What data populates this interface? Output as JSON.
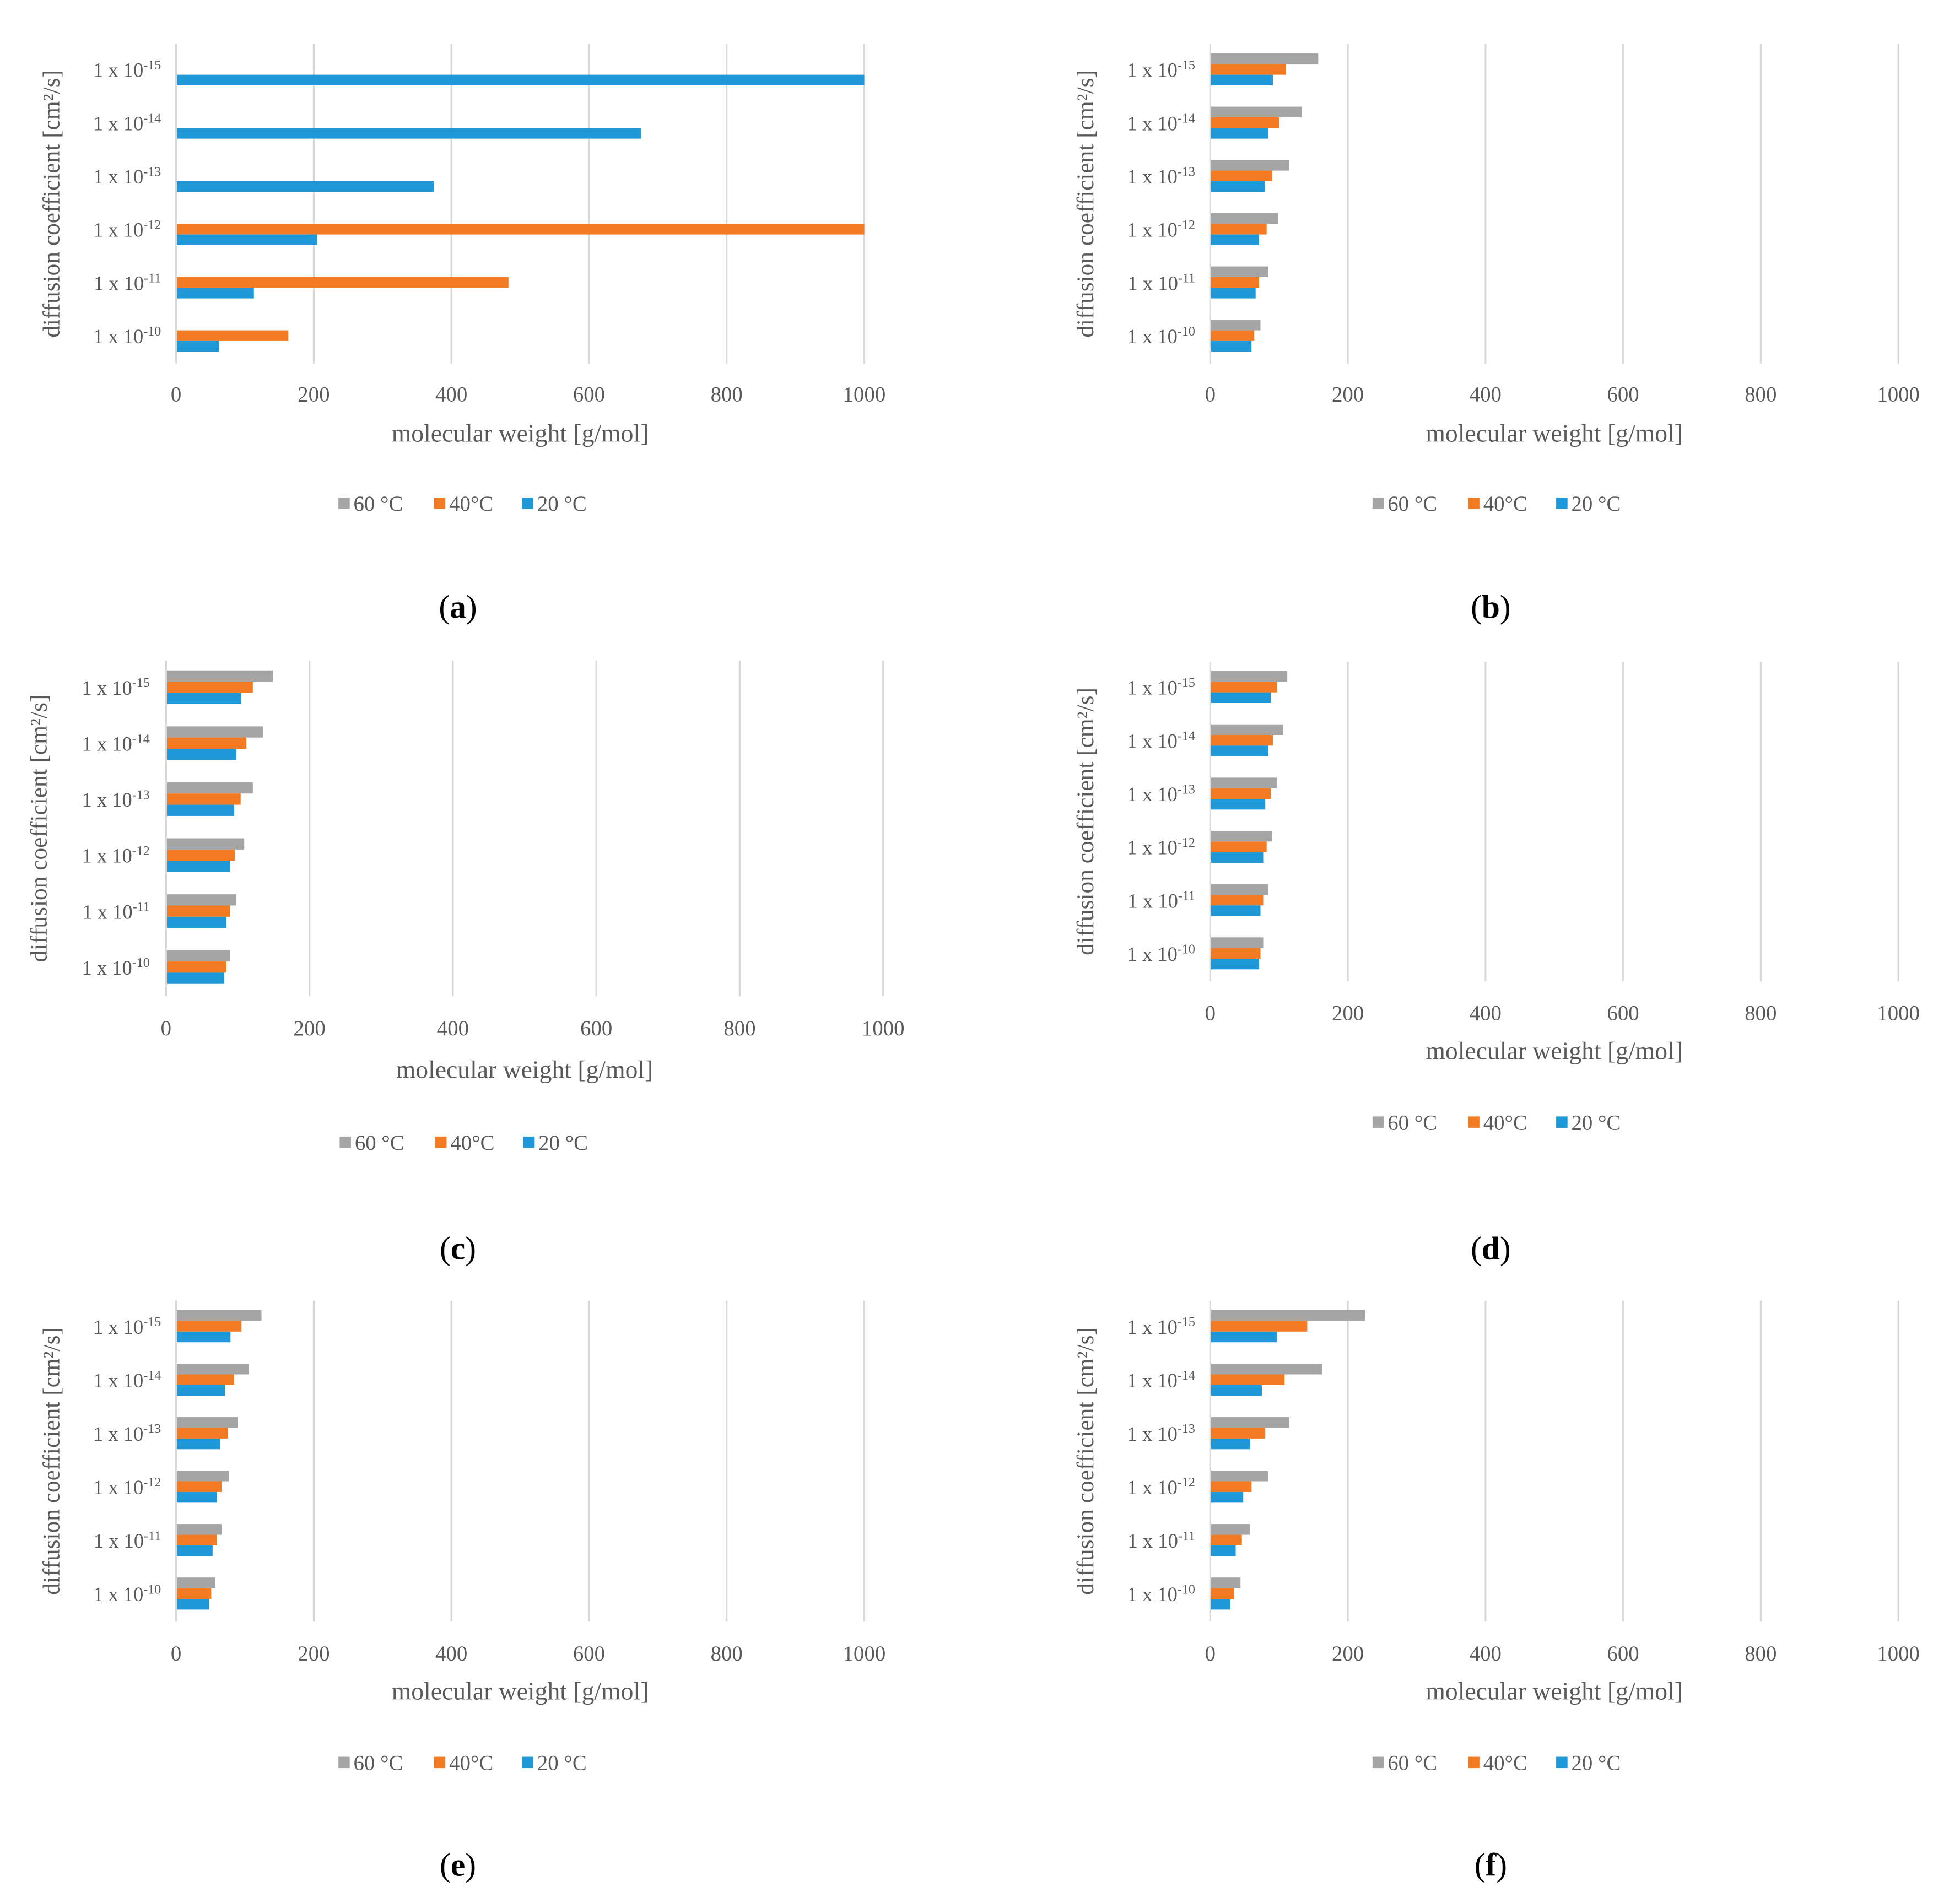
{
  "chart_data": [
    {
      "panel_label_parts": [
        "(",
        "a",
        ")"
      ],
      "type": "bar",
      "orientation": "horizontal",
      "xlabel": "molecular weight [g/mol]",
      "ylabel": "diffusion coefficient [cm²/s]",
      "xlim": [
        0,
        1000
      ],
      "xticks": [
        0,
        200,
        400,
        600,
        800,
        1000
      ],
      "grid": true,
      "legend": "bottom",
      "categories": [
        {
          "base": "1 x 10",
          "exp": "-10"
        },
        {
          "base": "1 x 10",
          "exp": "-11"
        },
        {
          "base": "1 x 10",
          "exp": "-12"
        },
        {
          "base": "1 x 10",
          "exp": "-13"
        },
        {
          "base": "1 x 10",
          "exp": "-14"
        },
        {
          "base": "1 x 10",
          "exp": "-15"
        }
      ],
      "series": [
        {
          "name": "60 °C",
          "color": "#A5A5A5",
          "values": [
            null,
            null,
            null,
            null,
            null,
            null
          ]
        },
        {
          "name": "40°C",
          "color": "#F27A22",
          "values": [
            163,
            483,
            1000,
            null,
            null,
            null
          ]
        },
        {
          "name": "20 °C",
          "color": "#1E98D6",
          "values": [
            62,
            113,
            205,
            375,
            676,
            1000
          ]
        }
      ]
    },
    {
      "panel_label_parts": [
        "(",
        "b",
        ")"
      ],
      "type": "bar",
      "orientation": "horizontal",
      "xlabel": "molecular weight [g/mol]",
      "ylabel": "diffusion coefficient [cm²/s]",
      "xlim": [
        0,
        1000
      ],
      "xticks": [
        0,
        200,
        400,
        600,
        800,
        1000
      ],
      "grid": true,
      "legend": "bottom",
      "categories": [
        {
          "base": "1 x 10",
          "exp": "-10"
        },
        {
          "base": "1 x 10",
          "exp": "-11"
        },
        {
          "base": "1 x 10",
          "exp": "-12"
        },
        {
          "base": "1 x 10",
          "exp": "-13"
        },
        {
          "base": "1 x 10",
          "exp": "-14"
        },
        {
          "base": "1 x 10",
          "exp": "-15"
        }
      ],
      "series": [
        {
          "name": "60 °C",
          "color": "#A5A5A5",
          "values": [
            73,
            84,
            99,
            115,
            133,
            157
          ]
        },
        {
          "name": "40°C",
          "color": "#F27A22",
          "values": [
            64,
            71,
            82,
            90,
            100,
            110
          ]
        },
        {
          "name": "20 °C",
          "color": "#1E98D6",
          "values": [
            60,
            66,
            71,
            79,
            84,
            91
          ]
        }
      ]
    },
    {
      "panel_label_parts": [
        "(",
        "c",
        ")"
      ],
      "type": "bar",
      "orientation": "horizontal",
      "xlabel": "molecular weight [g/mol]",
      "ylabel": "diffusion coefficient [cm²/s]",
      "xlim": [
        0,
        1000
      ],
      "xticks": [
        0,
        200,
        400,
        600,
        800,
        1000
      ],
      "grid": true,
      "legend": "bottom",
      "categories": [
        {
          "base": "1 x 10",
          "exp": "-10"
        },
        {
          "base": "1 x 10",
          "exp": "-11"
        },
        {
          "base": "1 x 10",
          "exp": "-12"
        },
        {
          "base": "1 x 10",
          "exp": "-13"
        },
        {
          "base": "1 x 10",
          "exp": "-14"
        },
        {
          "base": "1 x 10",
          "exp": "-15"
        }
      ],
      "series": [
        {
          "name": "60 °C",
          "color": "#A5A5A5",
          "values": [
            89,
            98,
            109,
            121,
            135,
            149
          ]
        },
        {
          "name": "40°C",
          "color": "#F27A22",
          "values": [
            84,
            89,
            96,
            104,
            112,
            121
          ]
        },
        {
          "name": "20 °C",
          "color": "#1E98D6",
          "values": [
            81,
            84,
            89,
            95,
            98,
            105
          ]
        }
      ]
    },
    {
      "panel_label_parts": [
        "(",
        "d",
        ")"
      ],
      "type": "bar",
      "orientation": "horizontal",
      "xlabel": "molecular weight [g/mol]",
      "ylabel": "diffusion coefficient [cm²/s]",
      "xlim": [
        0,
        1000
      ],
      "xticks": [
        0,
        200,
        400,
        600,
        800,
        1000
      ],
      "grid": true,
      "legend": "bottom",
      "categories": [
        {
          "base": "1 x 10",
          "exp": "-10"
        },
        {
          "base": "1 x 10",
          "exp": "-11"
        },
        {
          "base": "1 x 10",
          "exp": "-12"
        },
        {
          "base": "1 x 10",
          "exp": "-13"
        },
        {
          "base": "1 x 10",
          "exp": "-14"
        },
        {
          "base": "1 x 10",
          "exp": "-15"
        }
      ],
      "series": [
        {
          "name": "60 °C",
          "color": "#A5A5A5",
          "values": [
            77,
            84,
            90,
            97,
            106,
            112
          ]
        },
        {
          "name": "40°C",
          "color": "#F27A22",
          "values": [
            73,
            77,
            82,
            88,
            91,
            97
          ]
        },
        {
          "name": "20 °C",
          "color": "#1E98D6",
          "values": [
            71,
            73,
            77,
            80,
            84,
            88
          ]
        }
      ]
    },
    {
      "panel_label_parts": [
        "(",
        "e",
        ")"
      ],
      "type": "bar",
      "orientation": "horizontal",
      "xlabel": "molecular weight [g/mol]",
      "ylabel": "diffusion coefficient [cm²/s]",
      "xlim": [
        0,
        1000
      ],
      "xticks": [
        0,
        200,
        400,
        600,
        800,
        1000
      ],
      "grid": true,
      "legend": "bottom",
      "categories": [
        {
          "base": "1 x 10",
          "exp": "-10"
        },
        {
          "base": "1 x 10",
          "exp": "-11"
        },
        {
          "base": "1 x 10",
          "exp": "-12"
        },
        {
          "base": "1 x 10",
          "exp": "-13"
        },
        {
          "base": "1 x 10",
          "exp": "-14"
        },
        {
          "base": "1 x 10",
          "exp": "-15"
        }
      ],
      "series": [
        {
          "name": "60 °C",
          "color": "#A5A5A5",
          "values": [
            57,
            66,
            77,
            90,
            106,
            124
          ]
        },
        {
          "name": "40°C",
          "color": "#F27A22",
          "values": [
            51,
            59,
            66,
            75,
            84,
            95
          ]
        },
        {
          "name": "20 °C",
          "color": "#1E98D6",
          "values": [
            48,
            53,
            59,
            64,
            71,
            79
          ]
        }
      ]
    },
    {
      "panel_label_parts": [
        "(",
        "f",
        ")"
      ],
      "type": "bar",
      "orientation": "horizontal",
      "xlabel": "molecular weight [g/mol]",
      "ylabel": "diffusion coefficient [cm²/s]",
      "xlim": [
        0,
        1000
      ],
      "xticks": [
        0,
        200,
        400,
        600,
        800,
        1000
      ],
      "grid": true,
      "legend": "bottom",
      "categories": [
        {
          "base": "1 x 10",
          "exp": "-10"
        },
        {
          "base": "1 x 10",
          "exp": "-11"
        },
        {
          "base": "1 x 10",
          "exp": "-12"
        },
        {
          "base": "1 x 10",
          "exp": "-13"
        },
        {
          "base": "1 x 10",
          "exp": "-14"
        },
        {
          "base": "1 x 10",
          "exp": "-15"
        }
      ],
      "series": [
        {
          "name": "60 °C",
          "color": "#A5A5A5",
          "values": [
            44,
            58,
            84,
            115,
            163,
            225
          ]
        },
        {
          "name": "40°C",
          "color": "#F27A22",
          "values": [
            35,
            46,
            60,
            80,
            108,
            141
          ]
        },
        {
          "name": "20 °C",
          "color": "#1E98D6",
          "values": [
            29,
            37,
            48,
            58,
            75,
            97
          ]
        }
      ]
    }
  ]
}
